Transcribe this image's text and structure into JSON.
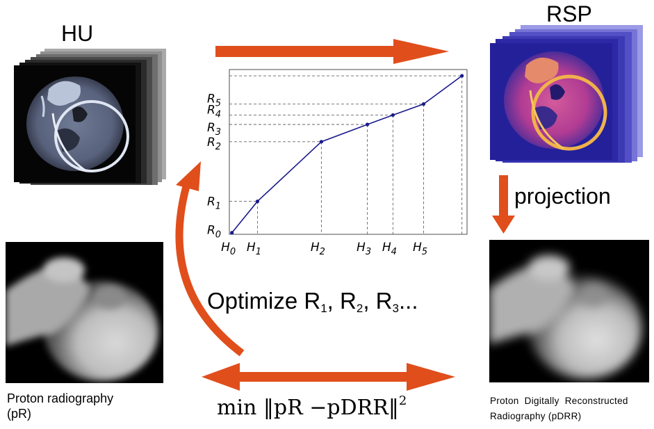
{
  "labels": {
    "hu": "HU",
    "rsp": "RSP",
    "projection": "projection",
    "pr_caption_line1": "Proton radiography",
    "pr_caption_line2": "(pR)",
    "pdrr_caption_line1": "Proton  Digitally  Reconstructed",
    "pdrr_caption_line2": "Radiography (pDRR)",
    "optimize_prefix": "Optimize R",
    "optimize_r1_sub": "1",
    "optimize_r2": "R",
    "optimize_r2_sub": "2",
    "optimize_r3": "R",
    "optimize_r3_sub": "3",
    "optimize_ellipsis": "...",
    "objective_min": "min",
    "objective_pr": "pR",
    "objective_minus": "−",
    "objective_pdrr": "pDRR",
    "objective_pow": "2"
  },
  "colors": {
    "arrow": "#e04e1c",
    "curve": "#1a1a8c",
    "grid": "#666666"
  },
  "chart_data": {
    "type": "line",
    "title": "",
    "xlabel": "",
    "ylabel": "",
    "x_tick_labels": [
      "H0",
      "H1",
      "H2",
      "H3",
      "H4",
      "H5"
    ],
    "y_tick_labels": [
      "R0",
      "R1",
      "R2",
      "R3",
      "R4",
      "R5"
    ],
    "x": [
      0,
      1,
      3.5,
      5.3,
      6.3,
      7.5,
      9.0
    ],
    "y": [
      0,
      1.0,
      2.9,
      3.45,
      3.75,
      4.1,
      5.0
    ],
    "xlim": [
      -0.1,
      9.2
    ],
    "ylim": [
      -0.05,
      5.2
    ],
    "grid": false,
    "guide_lines": "dashed"
  }
}
